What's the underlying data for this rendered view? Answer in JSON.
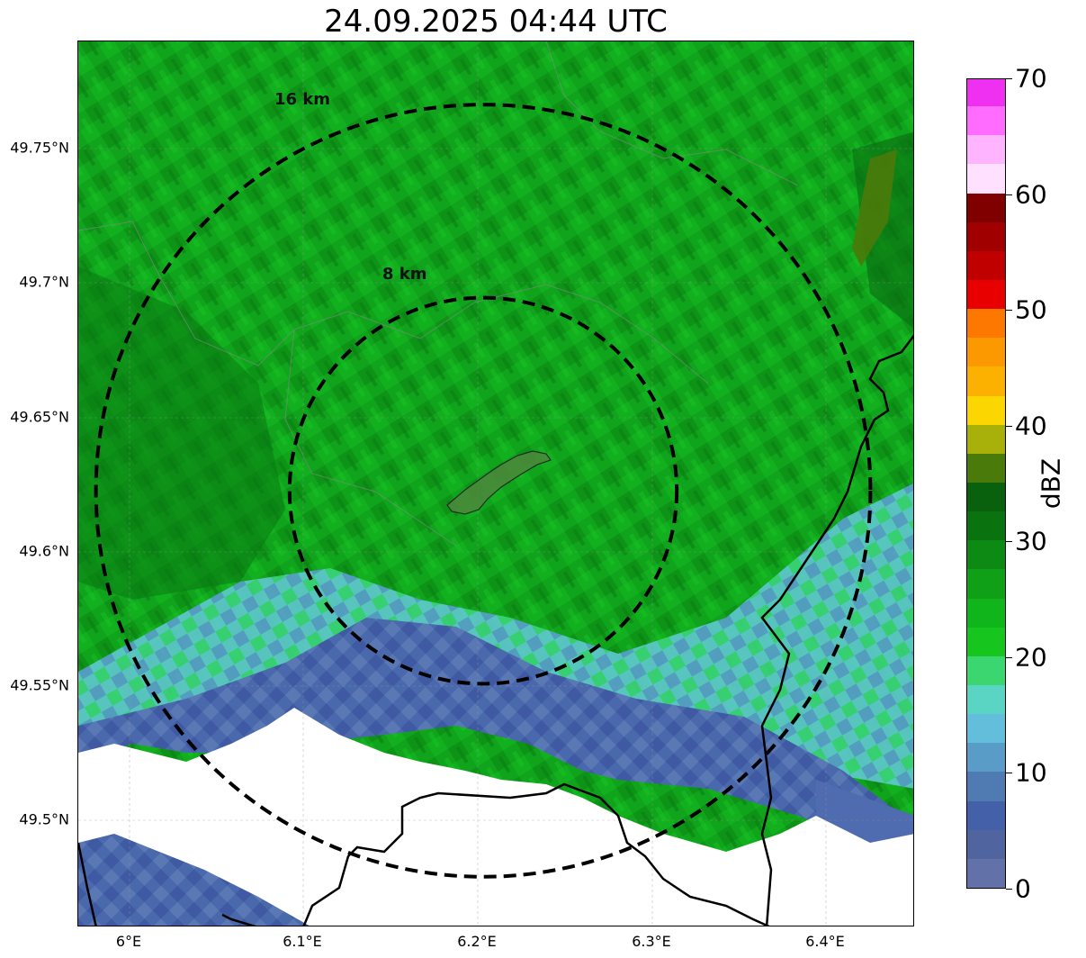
{
  "title": "24.09.2025 04:44 UTC",
  "map": {
    "lat_ticks": [
      "49.75°N",
      "49.7°N",
      "49.65°N",
      "49.6°N",
      "49.55°N",
      "49.5°N"
    ],
    "lon_ticks": [
      "6°E",
      "6.1°E",
      "6.2°E",
      "6.3°E",
      "6.4°E"
    ],
    "range_rings": [
      {
        "label": "8 km",
        "radius_km": 8
      },
      {
        "label": "16 km",
        "radius_km": 16
      }
    ],
    "colors": {
      "background_echo": "#11a51f",
      "weak_echo": "#4a6fb0",
      "ring": "#000000",
      "border": "#000000"
    }
  },
  "colorbar": {
    "label": "dBZ",
    "min": 0,
    "max": 70,
    "ticks": [
      "0",
      "10",
      "20",
      "30",
      "40",
      "50",
      "60",
      "70"
    ],
    "colors": [
      "#6272a8",
      "#5064a0",
      "#4360a8",
      "#4f7ab2",
      "#5a9cc8",
      "#62bedb",
      "#5ad4c3",
      "#3cd670",
      "#16c61e",
      "#10b41b",
      "#0fa018",
      "#0d8a14",
      "#0a7310",
      "#09600d",
      "#4a7a0a",
      "#a8b00a",
      "#fcd600",
      "#fcb000",
      "#fc9800",
      "#fc7800",
      "#e80000",
      "#c00000",
      "#a00000",
      "#800000",
      "#ffe0ff",
      "#ffb4ff",
      "#ff6cff",
      "#f030f0"
    ]
  }
}
